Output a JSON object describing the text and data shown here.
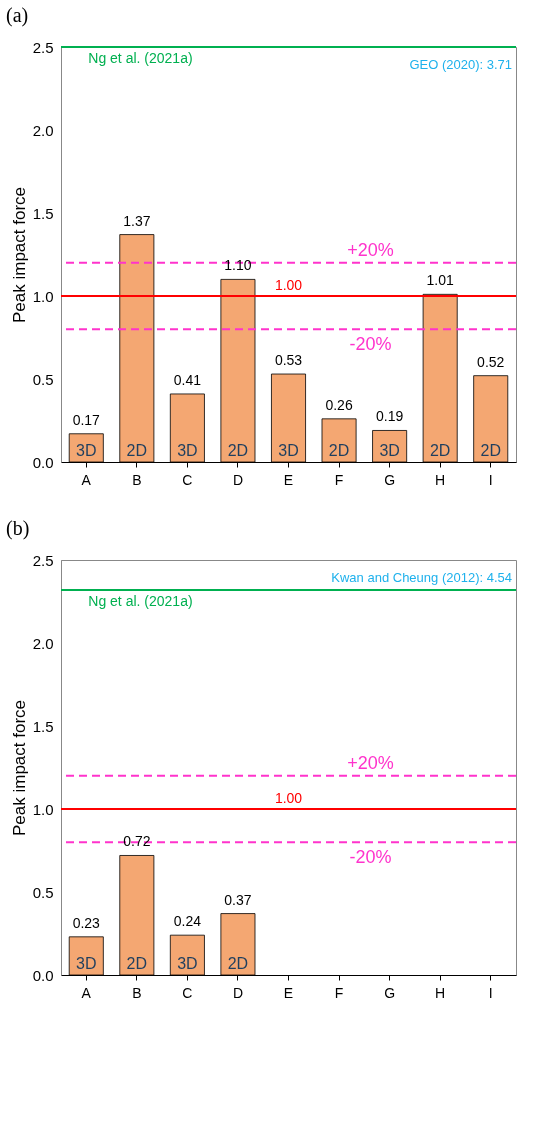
{
  "chart_data": [
    {
      "type": "bar",
      "title": "(a)",
      "ylabel": "Peak impact force",
      "categories": [
        "A",
        "B",
        "C",
        "D",
        "E",
        "F",
        "G",
        "H",
        "I"
      ],
      "values": [
        0.17,
        1.37,
        0.41,
        1.1,
        0.53,
        0.26,
        0.19,
        1.01,
        0.52
      ],
      "value_labels": [
        "0.17",
        "1.37",
        "0.41",
        "1.10",
        "0.53",
        "0.26",
        "0.19",
        "1.01",
        "0.52"
      ],
      "color": "#f4a772",
      "ylim": [
        0,
        2.5
      ],
      "yticks": [
        {
          "value": 0,
          "label": "0.0"
        },
        {
          "value": 0.5,
          "label": "0.5"
        },
        {
          "value": 1,
          "label": "1.0"
        },
        {
          "value": 1.5,
          "label": "1.5"
        },
        {
          "value": 2,
          "label": "2.0"
        },
        {
          "value": 2.5,
          "label": "2.5"
        }
      ],
      "grid": false,
      "ref_lines": [
        {
          "axis": "y",
          "value": 2.5,
          "label": "Ng et al. (2021a)",
          "color": "#00b050",
          "line_style": "solid"
        },
        {
          "axis": "y",
          "value": 1.0,
          "label": "1.00",
          "color": "#ff0000",
          "line_style": "solid"
        },
        {
          "axis": "y",
          "value": 1.2,
          "color": "#ff33cc",
          "line_style": "dashed"
        },
        {
          "axis": "y",
          "value": 0.8,
          "color": "#ff33cc",
          "line_style": "dashed"
        }
      ],
      "annotations": [
        "GEO (2020): 3.71",
        "3D",
        "2D",
        "3D",
        "2D",
        "3D",
        "2D",
        "3D",
        "2D",
        "2D",
        {
          "text": "+20%",
          "y": 1.2
        },
        {
          "text": "-20%",
          "y": 0.8
        }
      ]
    },
    {
      "type": "bar",
      "title": "(b)",
      "ylabel": "Peak impact force",
      "categories": [
        "A",
        "B",
        "C",
        "D",
        "E",
        "F",
        "G",
        "H",
        "I"
      ],
      "values": [
        0.23,
        0.72,
        0.24,
        0.37,
        null,
        null,
        null,
        null,
        null
      ],
      "value_labels": [
        "0.23",
        "0.72",
        "0.24",
        "0.37",
        null,
        null,
        null,
        null,
        null
      ],
      "color": "#f4a772",
      "ylim": [
        0,
        2.5
      ],
      "yticks": [
        {
          "value": 0,
          "label": "0.0"
        },
        {
          "value": 0.5,
          "label": "0.5"
        },
        {
          "value": 1,
          "label": "1.0"
        },
        {
          "value": 1.5,
          "label": "1.5"
        },
        {
          "value": 2,
          "label": "2.0"
        },
        {
          "value": 2.5,
          "label": "2.5"
        }
      ],
      "grid": false,
      "ref_lines": [
        {
          "axis": "y",
          "value": 2.32,
          "label": "Ng et al. (2021a)",
          "color": "#00b050",
          "line_style": "solid"
        },
        {
          "axis": "y",
          "value": 1.0,
          "label": "1.00",
          "color": "#ff0000",
          "line_style": "solid"
        },
        {
          "axis": "y",
          "value": 1.2,
          "color": "#ff33cc",
          "line_style": "dashed"
        },
        {
          "axis": "y",
          "value": 0.8,
          "color": "#ff33cc",
          "line_style": "dashed"
        }
      ],
      "annotations": [
        "Kwan and Cheung (2012): 4.54",
        "3D",
        "2D",
        "3D",
        "2D",
        {
          "text": "+20%",
          "y": 1.2
        },
        {
          "text": "-20%",
          "y": 0.8
        }
      ]
    }
  ]
}
